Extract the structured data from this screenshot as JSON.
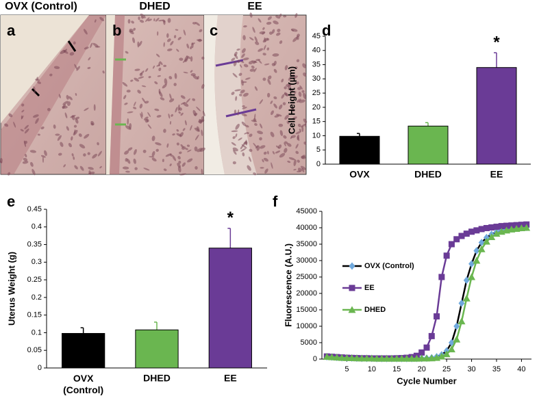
{
  "micrographs": [
    {
      "letter": "a",
      "title": "OVX (Control)"
    },
    {
      "letter": "b",
      "title": "DHED"
    },
    {
      "letter": "c",
      "title": "EE"
    }
  ],
  "chart_data": [
    {
      "type": "bar",
      "panel": "d",
      "ylabel": "Cell Height (µm)",
      "categories": [
        "OVX",
        "DHED",
        "EE"
      ],
      "values": [
        9.8,
        13.4,
        34
      ],
      "errors": [
        1,
        1.2,
        5.2
      ],
      "colors": [
        "#000000",
        "#6ab650",
        "#6a3b96"
      ],
      "ylim": [
        0,
        45
      ],
      "yticks": [
        0,
        5,
        10,
        15,
        20,
        25,
        30,
        35,
        40,
        45
      ],
      "annotation": "*"
    },
    {
      "type": "bar",
      "panel": "e",
      "ylabel": "Uterus Weight (g)",
      "categories": [
        "OVX (Control)",
        "DHED",
        "EE"
      ],
      "values": [
        0.098,
        0.108,
        0.34
      ],
      "errors": [
        0.016,
        0.022,
        0.056
      ],
      "colors": [
        "#000000",
        "#6ab650",
        "#6a3b96"
      ],
      "ylim": [
        0,
        0.45
      ],
      "yticks": [
        0,
        0.05,
        0.1,
        0.15,
        0.2,
        0.25,
        0.3,
        0.35,
        0.4,
        0.45
      ],
      "annotation": "*"
    },
    {
      "type": "line",
      "panel": "f",
      "xlabel": "Cycle Number",
      "ylabel": "Fluorescence (A.U.)",
      "x": [
        1,
        2,
        3,
        4,
        5,
        6,
        7,
        8,
        9,
        10,
        11,
        12,
        13,
        14,
        15,
        16,
        17,
        18,
        19,
        20,
        21,
        22,
        23,
        24,
        25,
        26,
        27,
        28,
        29,
        30,
        31,
        32,
        33,
        34,
        35,
        36,
        37,
        38,
        39,
        40,
        41
      ],
      "xlim": [
        0,
        42
      ],
      "xticks": [
        5,
        10,
        15,
        20,
        25,
        30,
        35,
        40
      ],
      "ylim": [
        0,
        45000
      ],
      "yticks": [
        0,
        5000,
        10000,
        15000,
        20000,
        25000,
        30000,
        35000,
        40000,
        45000
      ],
      "legend": "left",
      "series": [
        {
          "name": "OVX  (Control)",
          "color": "#6fa8dc",
          "line_color": "#000000",
          "marker": "diamond",
          "values": [
            700,
            600,
            500,
            400,
            350,
            300,
            250,
            200,
            200,
            200,
            150,
            150,
            150,
            150,
            150,
            150,
            150,
            150,
            200,
            200,
            250,
            400,
            700,
            1300,
            2500,
            5000,
            10000,
            17000,
            24000,
            29000,
            33000,
            35500,
            37000,
            38000,
            38700,
            39200,
            39500,
            39700,
            39900,
            40000,
            40100
          ]
        },
        {
          "name": "EE",
          "color": "#6a3b96",
          "line_color": "#6a3b96",
          "marker": "square",
          "values": [
            800,
            700,
            600,
            500,
            400,
            350,
            300,
            250,
            250,
            200,
            200,
            200,
            200,
            200,
            250,
            300,
            400,
            600,
            1000,
            2000,
            3500,
            7000,
            13000,
            25000,
            31500,
            35000,
            36500,
            37500,
            38200,
            38800,
            39200,
            39600,
            39900,
            40100,
            40300,
            40500,
            40600,
            40700,
            40800,
            40900,
            41000
          ]
        },
        {
          "name": "DHED",
          "color": "#6ab650",
          "line_color": "#6ab650",
          "marker": "triangle",
          "values": [
            700,
            600,
            500,
            400,
            350,
            300,
            250,
            200,
            200,
            200,
            150,
            150,
            150,
            150,
            150,
            150,
            150,
            150,
            150,
            200,
            200,
            250,
            400,
            800,
            1500,
            3000,
            6000,
            11500,
            18500,
            25000,
            30000,
            33500,
            35800,
            37200,
            38200,
            38800,
            39200,
            39500,
            39700,
            39900,
            40000
          ]
        }
      ]
    }
  ]
}
